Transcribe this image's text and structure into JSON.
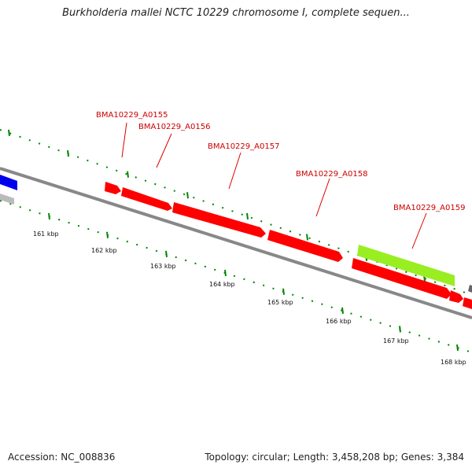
{
  "title": "Burkholderia mallei NCTC 10229 chromosome I, complete sequen...",
  "footer": {
    "accession": "Accession: NC_008836",
    "stats": "Topology: circular; Length: 3,458,208 bp; Genes: 3,384"
  },
  "colors": {
    "cds": "#ff0000",
    "cds_highlight": "#99ee22",
    "upstream_gene": "#0000ee",
    "upstream_pseudo": "#bbbbbb",
    "downstream_gene": "#666666",
    "backbone": "#888888",
    "tick": "#008800",
    "label": "#cc0000"
  },
  "genes": [
    {
      "id": "g0",
      "label": "BMA10229_A0155",
      "color": "cds"
    },
    {
      "id": "g1",
      "label": "BMA10229_A0156",
      "color": "cds"
    },
    {
      "id": "g2",
      "label": "BMA10229_A0157",
      "color": "cds"
    },
    {
      "id": "g3",
      "label": "BMA10229_A0158",
      "color": "cds"
    },
    {
      "id": "g4",
      "label": "BMA10229_A0159",
      "color": "cds"
    }
  ],
  "ticks": [
    {
      "label": "161 kbp"
    },
    {
      "label": "162 kbp"
    },
    {
      "label": "163 kbp"
    },
    {
      "label": "164 kbp"
    },
    {
      "label": "165 kbp"
    },
    {
      "label": "166 kbp"
    },
    {
      "label": "167 kbp"
    },
    {
      "label": "168 kbp"
    }
  ]
}
